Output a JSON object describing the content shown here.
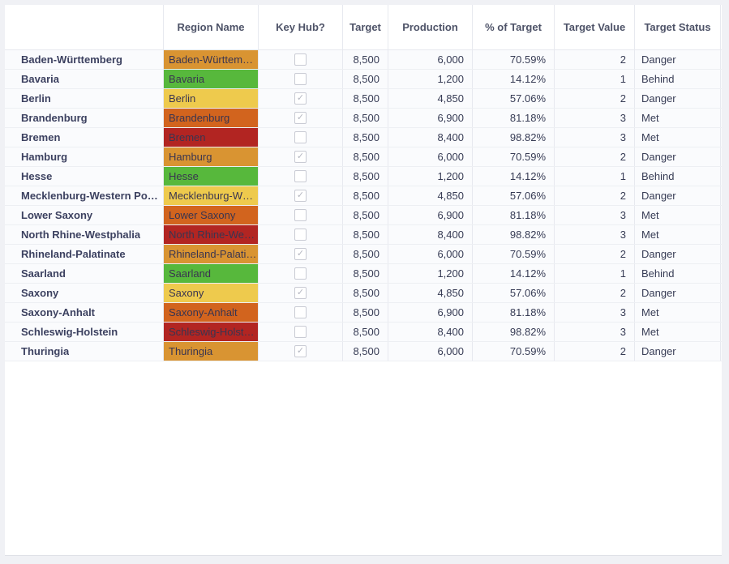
{
  "table": {
    "columns": [
      {
        "key": "row_label",
        "label": ""
      },
      {
        "key": "region_name",
        "label": "Region Name"
      },
      {
        "key": "key_hub",
        "label": "Key Hub?"
      },
      {
        "key": "target",
        "label": "Target"
      },
      {
        "key": "production",
        "label": "Production"
      },
      {
        "key": "percent",
        "label": "% of Target"
      },
      {
        "key": "target_value",
        "label": "Target Value"
      },
      {
        "key": "target_status",
        "label": "Target Status"
      }
    ],
    "status_colors": {
      "orange": "#D99432",
      "green": "#57B83C",
      "yellow": "#EECA4D",
      "dark_orange": "#D2641E",
      "red": "#B22522"
    },
    "rows": [
      {
        "label": "Baden-Württemberg",
        "region_display": "Baden-Württem…",
        "color": "orange",
        "key_hub": false,
        "target": "8,500",
        "production": "6,000",
        "percent": "70.59%",
        "target_value": "2",
        "status": "Danger"
      },
      {
        "label": "Bavaria",
        "region_display": "Bavaria",
        "color": "green",
        "key_hub": false,
        "target": "8,500",
        "production": "1,200",
        "percent": "14.12%",
        "target_value": "1",
        "status": "Behind"
      },
      {
        "label": "Berlin",
        "region_display": "Berlin",
        "color": "yellow",
        "key_hub": true,
        "target": "8,500",
        "production": "4,850",
        "percent": "57.06%",
        "target_value": "2",
        "status": "Danger"
      },
      {
        "label": "Brandenburg",
        "region_display": "Brandenburg",
        "color": "dark_orange",
        "key_hub": true,
        "target": "8,500",
        "production": "6,900",
        "percent": "81.18%",
        "target_value": "3",
        "status": "Met"
      },
      {
        "label": "Bremen",
        "region_display": "Bremen",
        "color": "red",
        "key_hub": false,
        "target": "8,500",
        "production": "8,400",
        "percent": "98.82%",
        "target_value": "3",
        "status": "Met"
      },
      {
        "label": "Hamburg",
        "region_display": "Hamburg",
        "color": "orange",
        "key_hub": true,
        "target": "8,500",
        "production": "6,000",
        "percent": "70.59%",
        "target_value": "2",
        "status": "Danger"
      },
      {
        "label": "Hesse",
        "region_display": "Hesse",
        "color": "green",
        "key_hub": false,
        "target": "8,500",
        "production": "1,200",
        "percent": "14.12%",
        "target_value": "1",
        "status": "Behind"
      },
      {
        "label": "Mecklenburg-Western Po…",
        "region_display": "Mecklenburg-W…",
        "color": "yellow",
        "key_hub": true,
        "target": "8,500",
        "production": "4,850",
        "percent": "57.06%",
        "target_value": "2",
        "status": "Danger"
      },
      {
        "label": "Lower Saxony",
        "region_display": "Lower Saxony",
        "color": "dark_orange",
        "key_hub": false,
        "target": "8,500",
        "production": "6,900",
        "percent": "81.18%",
        "target_value": "3",
        "status": "Met"
      },
      {
        "label": "North Rhine-Westphalia",
        "region_display": "North Rhine-We…",
        "color": "red",
        "key_hub": false,
        "target": "8,500",
        "production": "8,400",
        "percent": "98.82%",
        "target_value": "3",
        "status": "Met"
      },
      {
        "label": "Rhineland-Palatinate",
        "region_display": "Rhineland-Palati…",
        "color": "orange",
        "key_hub": true,
        "target": "8,500",
        "production": "6,000",
        "percent": "70.59%",
        "target_value": "2",
        "status": "Danger"
      },
      {
        "label": "Saarland",
        "region_display": "Saarland",
        "color": "green",
        "key_hub": false,
        "target": "8,500",
        "production": "1,200",
        "percent": "14.12%",
        "target_value": "1",
        "status": "Behind"
      },
      {
        "label": "Saxony",
        "region_display": "Saxony",
        "color": "yellow",
        "key_hub": true,
        "target": "8,500",
        "production": "4,850",
        "percent": "57.06%",
        "target_value": "2",
        "status": "Danger"
      },
      {
        "label": "Saxony-Anhalt",
        "region_display": "Saxony-Anhalt",
        "color": "dark_orange",
        "key_hub": false,
        "target": "8,500",
        "production": "6,900",
        "percent": "81.18%",
        "target_value": "3",
        "status": "Met"
      },
      {
        "label": "Schleswig-Holstein",
        "region_display": "Schleswig-Holst…",
        "color": "red",
        "key_hub": false,
        "target": "8,500",
        "production": "8,400",
        "percent": "98.82%",
        "target_value": "3",
        "status": "Met"
      },
      {
        "label": "Thuringia",
        "region_display": "Thuringia",
        "color": "orange",
        "key_hub": true,
        "target": "8,500",
        "production": "6,000",
        "percent": "70.59%",
        "target_value": "2",
        "status": "Danger"
      }
    ]
  },
  "icons": {
    "check": "✓"
  }
}
